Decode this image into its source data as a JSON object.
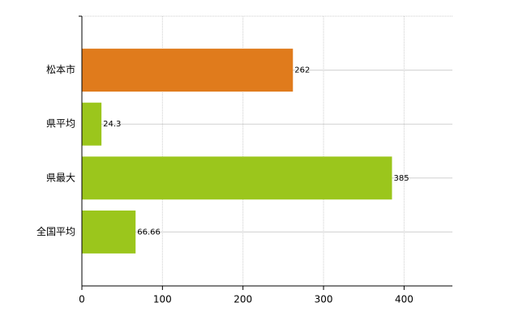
{
  "chart_data": {
    "type": "barh",
    "categories": [
      "松本市",
      "県平均",
      "県最大",
      "全国平均"
    ],
    "values": [
      262,
      24.3,
      385,
      66.66
    ],
    "colors": [
      "#e07b1c",
      "#9bc61c",
      "#9bc61c",
      "#9bc61c"
    ],
    "xlim": [
      0,
      460
    ],
    "xticks": [
      0,
      100,
      200,
      300,
      400
    ],
    "grid": true
  }
}
